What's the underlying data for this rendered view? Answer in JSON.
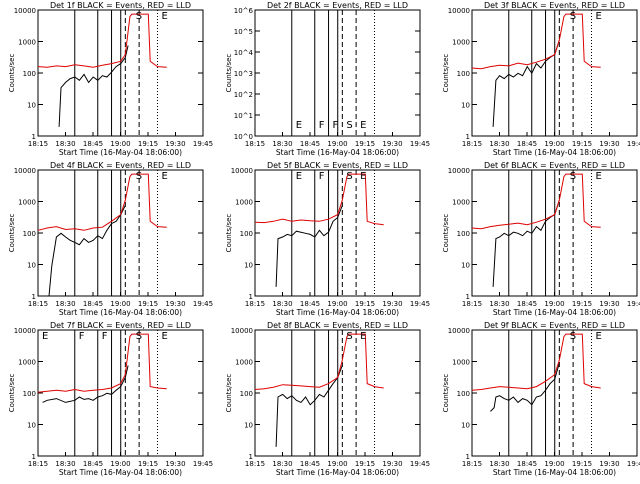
{
  "colors": {
    "events": "#000000",
    "lld": "#e00000",
    "axis": "#000000"
  },
  "xticks": [
    "18:15",
    "18:30",
    "18:45",
    "19:00",
    "19:15",
    "19:30",
    "19:45"
  ],
  "xlabel": "Start Time (16-May-04 18:06:00)",
  "ylabel": "Counts/sec",
  "markers": {
    "solid_lines": [
      18.5,
      18.75,
      18.9,
      19.0
    ],
    "dashed_lines": [
      19.05,
      19.2
    ],
    "dotted_lines": [
      19.4
    ]
  },
  "chart_data": [
    {
      "type": "line",
      "title": "Det 1f BLACK = Events, RED = LLD",
      "log_y": true,
      "ylim": [
        1,
        15000
      ],
      "yticks": [
        "1",
        "10",
        "100",
        "1000",
        "10000"
      ],
      "letters": [
        {
          "t": 19.12,
          "text": "S"
        },
        {
          "t": 19.4,
          "text": "E"
        }
      ],
      "series": [
        {
          "name": "Events",
          "color": "black",
          "x": [
            18.33,
            18.35,
            18.4,
            18.45,
            18.5,
            18.55,
            18.6,
            18.65,
            18.7,
            18.75,
            18.8,
            18.85,
            18.9,
            18.95,
            19.0,
            19.05,
            19.08
          ],
          "values": [
            2,
            40,
            60,
            80,
            90,
            70,
            110,
            60,
            90,
            70,
            100,
            90,
            130,
            200,
            250,
            400,
            1000
          ]
        },
        {
          "name": "LLD",
          "color": "red",
          "x": [
            18.1,
            18.2,
            18.3,
            18.4,
            18.5,
            18.6,
            18.7,
            18.8,
            18.9,
            19.0,
            19.05,
            19.1,
            19.12,
            19.3,
            19.32,
            19.4,
            19.5
          ],
          "values": [
            200,
            190,
            210,
            200,
            230,
            210,
            190,
            220,
            250,
            300,
            500,
            9000,
            11000,
            11000,
            300,
            200,
            190
          ]
        }
      ]
    },
    {
      "type": "line",
      "title": "Det 2f BLACK = Events, RED = LLD",
      "log_y": true,
      "ylim": [
        1,
        1000000
      ],
      "yticks": [
        "10^0",
        "10^1",
        "10^2",
        "10^3",
        "10^4",
        "10^5",
        "10^6"
      ],
      "letters": [
        {
          "t": 18.5,
          "text": "E"
        },
        {
          "t": 18.75,
          "text": "F"
        },
        {
          "t": 18.9,
          "text": "F"
        },
        {
          "t": 19.05,
          "text": "S"
        },
        {
          "t": 19.2,
          "text": "E"
        }
      ],
      "series": []
    },
    {
      "type": "line",
      "title": "Det 3f BLACK = Events, RED = LLD",
      "log_y": true,
      "ylim": [
        1,
        15000
      ],
      "yticks": [
        "1",
        "10",
        "100",
        "1000",
        "10000"
      ],
      "letters": [
        {
          "t": 19.12,
          "text": "S"
        },
        {
          "t": 19.4,
          "text": "E"
        }
      ],
      "series": [
        {
          "name": "Events",
          "color": "black",
          "x": [
            18.33,
            18.36,
            18.4,
            18.45,
            18.5,
            18.55,
            18.6,
            18.65,
            18.7,
            18.75,
            18.8,
            18.85,
            18.9,
            18.95,
            19.0,
            19.05
          ],
          "values": [
            2,
            70,
            100,
            80,
            110,
            90,
            120,
            100,
            200,
            120,
            250,
            180,
            300,
            400,
            500,
            1500
          ]
        },
        {
          "name": "LLD",
          "color": "red",
          "x": [
            18.1,
            18.2,
            18.3,
            18.4,
            18.5,
            18.6,
            18.7,
            18.8,
            18.9,
            19.0,
            19.05,
            19.1,
            19.12,
            19.3,
            19.32,
            19.4,
            19.5
          ],
          "values": [
            180,
            170,
            200,
            220,
            210,
            260,
            230,
            280,
            350,
            500,
            1500,
            9000,
            11000,
            11000,
            300,
            200,
            190
          ]
        }
      ]
    },
    {
      "type": "line",
      "title": "Det 4f BLACK = Events, RED = LLD",
      "log_y": true,
      "ylim": [
        1,
        15000
      ],
      "yticks": [
        "1",
        "10",
        "100",
        "1000",
        "10000"
      ],
      "letters": [
        {
          "t": 19.12,
          "text": "S"
        },
        {
          "t": 19.4,
          "text": "E"
        }
      ],
      "series": [
        {
          "name": "Events",
          "color": "black",
          "x": [
            18.22,
            18.25,
            18.3,
            18.35,
            18.4,
            18.45,
            18.5,
            18.55,
            18.6,
            18.65,
            18.7,
            18.75,
            18.8,
            18.85,
            18.9,
            18.95,
            19.0,
            19.05
          ],
          "values": [
            1,
            10,
            90,
            120,
            90,
            70,
            60,
            50,
            80,
            60,
            70,
            100,
            80,
            150,
            250,
            300,
            500,
            1000
          ]
        },
        {
          "name": "LLD",
          "color": "red",
          "x": [
            18.1,
            18.2,
            18.3,
            18.4,
            18.5,
            18.6,
            18.7,
            18.8,
            18.9,
            19.0,
            19.05,
            19.1,
            19.12,
            19.3,
            19.32,
            19.4,
            19.5
          ],
          "values": [
            150,
            180,
            200,
            160,
            170,
            150,
            180,
            190,
            300,
            500,
            1500,
            9000,
            11000,
            11000,
            300,
            200,
            190
          ]
        }
      ]
    },
    {
      "type": "line",
      "title": "Det 5f BLACK = Events, RED = LLD",
      "log_y": true,
      "ylim": [
        1,
        15000
      ],
      "yticks": [
        "1",
        "10",
        "100",
        "1000",
        "10000"
      ],
      "letters": [
        {
          "t": 18.5,
          "text": "E"
        },
        {
          "t": 18.75,
          "text": "F"
        },
        {
          "t": 19.05,
          "text": "S"
        },
        {
          "t": 19.2,
          "text": "E"
        }
      ],
      "series": [
        {
          "name": "Events",
          "color": "black",
          "x": [
            18.33,
            18.35,
            18.4,
            18.45,
            18.5,
            18.55,
            18.6,
            18.65,
            18.7,
            18.75,
            18.8,
            18.85,
            18.9,
            18.95,
            19.0,
            19.05
          ],
          "values": [
            2,
            80,
            90,
            110,
            100,
            140,
            130,
            120,
            110,
            90,
            150,
            100,
            130,
            300,
            400,
            1000
          ]
        },
        {
          "name": "LLD",
          "color": "red",
          "x": [
            18.1,
            18.2,
            18.3,
            18.4,
            18.5,
            18.6,
            18.7,
            18.8,
            18.9,
            19.0,
            19.05,
            19.1,
            19.12,
            19.3,
            19.32,
            19.4,
            19.5
          ],
          "values": [
            280,
            270,
            300,
            350,
            300,
            330,
            310,
            300,
            350,
            500,
            1500,
            9000,
            11000,
            11000,
            300,
            250,
            230
          ]
        }
      ]
    },
    {
      "type": "line",
      "title": "Det 6f BLACK = Events, RED = LLD",
      "log_y": true,
      "ylim": [
        1,
        15000
      ],
      "yticks": [
        "1",
        "10",
        "100",
        "1000",
        "10000"
      ],
      "letters": [
        {
          "t": 19.12,
          "text": "S"
        },
        {
          "t": 19.4,
          "text": "E"
        }
      ],
      "series": [
        {
          "name": "Events",
          "color": "black",
          "x": [
            18.33,
            18.36,
            18.4,
            18.45,
            18.5,
            18.55,
            18.6,
            18.65,
            18.7,
            18.75,
            18.8,
            18.85,
            18.9,
            18.95,
            19.0,
            19.05
          ],
          "values": [
            2,
            80,
            90,
            120,
            100,
            130,
            120,
            100,
            140,
            120,
            200,
            150,
            300,
            400,
            500,
            1500
          ]
        },
        {
          "name": "LLD",
          "color": "red",
          "x": [
            18.1,
            18.2,
            18.3,
            18.4,
            18.5,
            18.6,
            18.7,
            18.8,
            18.9,
            19.0,
            19.05,
            19.1,
            19.12,
            19.3,
            19.32,
            19.4,
            19.5
          ],
          "values": [
            180,
            170,
            200,
            220,
            240,
            260,
            230,
            280,
            350,
            500,
            1500,
            9000,
            11000,
            11000,
            300,
            200,
            190
          ]
        }
      ]
    },
    {
      "type": "line",
      "title": "Det 7f BLACK = Events, RED = LLD",
      "log_y": true,
      "ylim": [
        1,
        15000
      ],
      "yticks": [
        "1",
        "10",
        "100",
        "1000",
        "10000"
      ],
      "letters": [
        {
          "t": 18.1,
          "text": "E"
        },
        {
          "t": 18.5,
          "text": "F"
        },
        {
          "t": 18.75,
          "text": "F"
        },
        {
          "t": 19.12,
          "text": "S"
        },
        {
          "t": 19.4,
          "text": "E"
        }
      ],
      "series": [
        {
          "name": "Events",
          "color": "black",
          "x": [
            18.15,
            18.2,
            18.3,
            18.4,
            18.5,
            18.55,
            18.6,
            18.65,
            18.7,
            18.75,
            18.8,
            18.85,
            18.9,
            18.95,
            19.0,
            19.05,
            19.08
          ],
          "values": [
            60,
            70,
            80,
            60,
            70,
            90,
            75,
            80,
            70,
            90,
            100,
            120,
            110,
            150,
            200,
            400,
            1000
          ]
        },
        {
          "name": "LLD",
          "color": "red",
          "x": [
            18.1,
            18.2,
            18.3,
            18.4,
            18.5,
            18.6,
            18.7,
            18.8,
            18.9,
            19.0,
            19.05,
            19.1,
            19.12,
            19.3,
            19.32,
            19.4,
            19.5
          ],
          "values": [
            130,
            140,
            150,
            140,
            160,
            140,
            150,
            160,
            180,
            250,
            500,
            9000,
            11000,
            11000,
            200,
            180,
            170
          ]
        }
      ]
    },
    {
      "type": "line",
      "title": "Det 8f BLACK = Events, RED = LLD",
      "log_y": true,
      "ylim": [
        1,
        15000
      ],
      "yticks": [
        "1",
        "10",
        "100",
        "1000",
        "10000"
      ],
      "letters": [
        {
          "t": 19.05,
          "text": "S"
        },
        {
          "t": 19.2,
          "text": "E"
        }
      ],
      "series": [
        {
          "name": "Events",
          "color": "black",
          "x": [
            18.33,
            18.35,
            18.4,
            18.45,
            18.5,
            18.55,
            18.6,
            18.65,
            18.7,
            18.75,
            18.8,
            18.85,
            18.9,
            18.95,
            19.0,
            19.05
          ],
          "values": [
            2,
            90,
            110,
            80,
            100,
            70,
            60,
            90,
            50,
            70,
            110,
            90,
            150,
            250,
            400,
            1000
          ]
        },
        {
          "name": "LLD",
          "color": "red",
          "x": [
            18.1,
            18.2,
            18.3,
            18.4,
            18.5,
            18.6,
            18.7,
            18.8,
            18.9,
            19.0,
            19.05,
            19.1,
            19.12,
            19.3,
            19.32,
            19.4,
            19.5
          ],
          "values": [
            160,
            170,
            190,
            230,
            220,
            210,
            200,
            190,
            250,
            400,
            1500,
            9000,
            11000,
            11000,
            250,
            200,
            180
          ]
        }
      ]
    },
    {
      "type": "line",
      "title": "Det 9f BLACK = Events, RED = LLD",
      "log_y": true,
      "ylim": [
        1,
        15000
      ],
      "yticks": [
        "1",
        "10",
        "100",
        "1000",
        "10000"
      ],
      "letters": [
        {
          "t": 19.12,
          "text": "S"
        },
        {
          "t": 19.4,
          "text": "E"
        }
      ],
      "series": [
        {
          "name": "Events",
          "color": "black",
          "x": [
            18.3,
            18.34,
            18.36,
            18.4,
            18.45,
            18.5,
            18.55,
            18.6,
            18.65,
            18.7,
            18.75,
            18.8,
            18.85,
            18.9,
            18.95,
            19.0,
            19.05
          ],
          "values": [
            30,
            40,
            90,
            100,
            80,
            70,
            90,
            60,
            80,
            70,
            50,
            90,
            100,
            150,
            250,
            350,
            1200
          ]
        },
        {
          "name": "LLD",
          "color": "red",
          "x": [
            18.1,
            18.2,
            18.3,
            18.4,
            18.5,
            18.6,
            18.7,
            18.8,
            18.9,
            19.0,
            19.05,
            19.1,
            19.12,
            19.3,
            19.32,
            19.4,
            19.5
          ],
          "values": [
            150,
            160,
            180,
            200,
            190,
            180,
            170,
            200,
            300,
            500,
            1500,
            9000,
            11000,
            11000,
            250,
            200,
            180
          ]
        }
      ]
    }
  ]
}
